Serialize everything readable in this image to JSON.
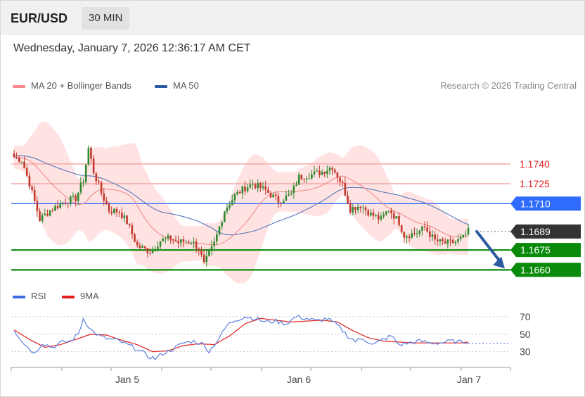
{
  "header": {
    "symbol": "EUR/USD",
    "timeframe": "30 MIN",
    "datetime": "Wednesday, January 7, 2026 12:36:17 AM CET"
  },
  "legend": {
    "ma20": "MA 20 + Bollinger Bands",
    "ma50": "MA 50",
    "credit": "Research © 2026 Trading Central",
    "rsi": "RSI",
    "rsi_ma": "9MA"
  },
  "colors": {
    "ma20": "#ff7b7b",
    "ma50": "#2c5aa0",
    "band": "#ffe3e3",
    "up": "#2f8a2f",
    "down": "#c0392b",
    "pivot": "#2f6bff",
    "support": "#0a8a0a",
    "resistance": "#f08080",
    "last": "#333333",
    "arrow": "#2c5aa0",
    "rsi": "#4169e1",
    "rsi_ma": "#e02020"
  },
  "chart_data": [
    {
      "type": "candlestick",
      "title": "",
      "x_labels": [
        "Jan 5",
        "Jan 6",
        "Jan 7"
      ],
      "ylim": [
        1.16565,
        1.17925
      ],
      "levels": [
        {
          "value": 1.174,
          "label": "1.1740",
          "kind": "resistance"
        },
        {
          "value": 1.1725,
          "label": "1.1725",
          "kind": "resistance"
        },
        {
          "value": 1.171,
          "label": "1.1710",
          "kind": "pivot"
        },
        {
          "value": 1.1689,
          "label": "1.1689",
          "kind": "last"
        },
        {
          "value": 1.1675,
          "label": "1.1675",
          "kind": "support"
        },
        {
          "value": 1.166,
          "label": "1.1660",
          "kind": "support"
        }
      ],
      "forecast": "down to 1.1660",
      "close_anchors": [
        [
          0,
          1.1745
        ],
        [
          3,
          1.1743
        ],
        [
          6,
          1.1725
        ],
        [
          10,
          1.1698
        ],
        [
          14,
          1.1705
        ],
        [
          20,
          1.1712
        ],
        [
          24,
          1.1714
        ],
        [
          27,
          1.1728
        ],
        [
          29,
          1.1752
        ],
        [
          31,
          1.1734
        ],
        [
          34,
          1.1718
        ],
        [
          37,
          1.1705
        ],
        [
          41,
          1.1704
        ],
        [
          44,
          1.1696
        ],
        [
          48,
          1.1678
        ],
        [
          53,
          1.1674
        ],
        [
          57,
          1.1682
        ],
        [
          61,
          1.1684
        ],
        [
          64,
          1.1681
        ],
        [
          69,
          1.1682
        ],
        [
          72,
          1.1676
        ],
        [
          74,
          1.1664
        ],
        [
          78,
          1.168
        ],
        [
          82,
          1.1705
        ],
        [
          86,
          1.1716
        ],
        [
          90,
          1.1722
        ],
        [
          93,
          1.1725
        ],
        [
          98,
          1.172
        ],
        [
          103,
          1.1712
        ],
        [
          108,
          1.1717
        ],
        [
          111,
          1.173
        ],
        [
          116,
          1.1732
        ],
        [
          120,
          1.1734
        ],
        [
          124,
          1.1738
        ],
        [
          128,
          1.1724
        ],
        [
          131,
          1.1706
        ],
        [
          135,
          1.1709
        ],
        [
          139,
          1.1702
        ],
        [
          143,
          1.1698
        ],
        [
          146,
          1.1706
        ],
        [
          150,
          1.1696
        ],
        [
          152,
          1.1686
        ],
        [
          157,
          1.1688
        ],
        [
          160,
          1.1692
        ],
        [
          164,
          1.1682
        ],
        [
          168,
          1.168
        ],
        [
          172,
          1.1681
        ],
        [
          175,
          1.1684
        ],
        [
          177,
          1.1689
        ]
      ],
      "series": [
        {
          "name": "MA 20 + Bollinger Bands"
        },
        {
          "name": "MA 50"
        }
      ]
    },
    {
      "type": "line",
      "title": "",
      "ylim": [
        20,
        78
      ],
      "y_ticks": [
        70,
        50,
        30
      ],
      "series": [
        {
          "name": "RSI",
          "anchors": [
            [
              0,
              55
            ],
            [
              4,
              39
            ],
            [
              8,
              28
            ],
            [
              11,
              40
            ],
            [
              15,
              35
            ],
            [
              18,
              40
            ],
            [
              22,
              42
            ],
            [
              25,
              50
            ],
            [
              27,
              68
            ],
            [
              30,
              55
            ],
            [
              33,
              48
            ],
            [
              36,
              45
            ],
            [
              40,
              43
            ],
            [
              44,
              38
            ],
            [
              48,
              33
            ],
            [
              52,
              25
            ],
            [
              55,
              22
            ],
            [
              58,
              28
            ],
            [
              62,
              33
            ],
            [
              66,
              40
            ],
            [
              70,
              42
            ],
            [
              74,
              38
            ],
            [
              76,
              30
            ],
            [
              78,
              38
            ],
            [
              80,
              46
            ],
            [
              83,
              60
            ],
            [
              86,
              66
            ],
            [
              90,
              70
            ],
            [
              94,
              68
            ],
            [
              98,
              64
            ],
            [
              102,
              65
            ],
            [
              106,
              62
            ],
            [
              110,
              70
            ],
            [
              114,
              68
            ],
            [
              118,
              65
            ],
            [
              122,
              68
            ],
            [
              126,
              60
            ],
            [
              130,
              48
            ],
            [
              133,
              42
            ],
            [
              136,
              45
            ],
            [
              140,
              38
            ],
            [
              144,
              44
            ],
            [
              147,
              48
            ],
            [
              150,
              38
            ],
            [
              154,
              40
            ],
            [
              158,
              42
            ],
            [
              162,
              40
            ],
            [
              166,
              40
            ],
            [
              170,
              42
            ],
            [
              174,
              41
            ],
            [
              177,
              42
            ]
          ]
        },
        {
          "name": "9MA",
          "anchors": [
            [
              0,
              55
            ],
            [
              6,
              44
            ],
            [
              12,
              35
            ],
            [
              18,
              38
            ],
            [
              24,
              44
            ],
            [
              30,
              50
            ],
            [
              36,
              49
            ],
            [
              42,
              43
            ],
            [
              48,
              38
            ],
            [
              54,
              30
            ],
            [
              60,
              31
            ],
            [
              66,
              37
            ],
            [
              72,
              39
            ],
            [
              78,
              38
            ],
            [
              84,
              48
            ],
            [
              90,
              62
            ],
            [
              96,
              68
            ],
            [
              102,
              66
            ],
            [
              108,
              64
            ],
            [
              114,
              65
            ],
            [
              120,
              66
            ],
            [
              126,
              64
            ],
            [
              132,
              54
            ],
            [
              138,
              46
            ],
            [
              144,
              42
            ],
            [
              150,
              41
            ],
            [
              156,
              40
            ],
            [
              162,
              40
            ],
            [
              168,
              40
            ],
            [
              174,
              40
            ],
            [
              177,
              41
            ]
          ]
        }
      ]
    }
  ]
}
